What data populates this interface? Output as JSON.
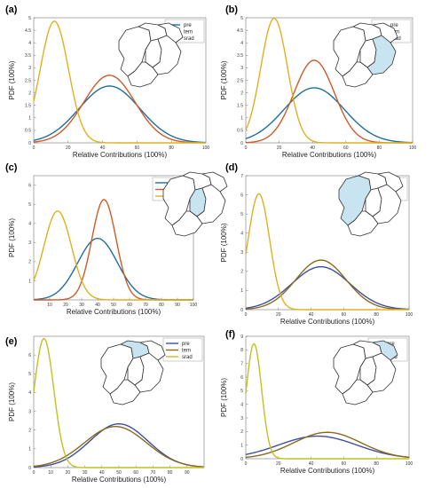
{
  "chart_data": [
    {
      "panel": "(a)",
      "type": "line",
      "xlabel": "Relative Contributions (100%)",
      "ylabel": "PDF (100%)",
      "xlim": [
        0,
        100
      ],
      "ylim": [
        0,
        5
      ],
      "xticks": [
        0,
        20,
        40,
        60,
        80,
        100
      ],
      "yticks": [
        0,
        0.5,
        1,
        1.5,
        2,
        2.5,
        3,
        3.5,
        4,
        4.5,
        5
      ],
      "ytick_labels": [
        "0",
        "0.5",
        "1",
        "1.5",
        "2",
        "2.5",
        "3",
        "3.5",
        "4",
        "4.5",
        "5"
      ],
      "legend_position": "top-right",
      "highlight": "none",
      "series": [
        {
          "name": "pre",
          "color": "#1f6e9c",
          "mean": 44,
          "sd": 17.6,
          "peak": 2.27
        },
        {
          "name": "tem",
          "color": "#d05a28",
          "mean": 44,
          "sd": 14.8,
          "peak": 2.7
        },
        {
          "name": "srad",
          "color": "#e0b020",
          "mean": 12,
          "sd": 8.2,
          "peak": 4.86
        }
      ]
    },
    {
      "panel": "(b)",
      "type": "line",
      "xlabel": "Relative Contributions (100%)",
      "ylabel": "PDF (100%)",
      "xlim": [
        0,
        100
      ],
      "ylim": [
        0,
        5
      ],
      "xticks": [
        0,
        20,
        40,
        60,
        80,
        100
      ],
      "yticks": [
        0,
        0.5,
        1,
        1.5,
        2,
        2.5,
        3,
        3.5,
        4,
        4.5,
        5
      ],
      "ytick_labels": [
        "0",
        "0.5",
        "1",
        "1.5",
        "2",
        "2.5",
        "3",
        "3.5",
        "4",
        "4.5",
        "5"
      ],
      "legend_position": "top-right",
      "highlight": "south-east",
      "series": [
        {
          "name": "pre",
          "color": "#1f6e9c",
          "mean": 41,
          "sd": 18.1,
          "peak": 2.2
        },
        {
          "name": "tem",
          "color": "#d05a28",
          "mean": 41,
          "sd": 12.1,
          "peak": 3.3
        },
        {
          "name": "srad",
          "color": "#e0b020",
          "mean": 17,
          "sd": 8.0,
          "peak": 4.98
        }
      ]
    },
    {
      "panel": "(c)",
      "type": "line",
      "xlabel": "Relative Contributions (100%)",
      "ylabel": "PDF (100%)",
      "xlim": [
        0,
        100
      ],
      "ylim": [
        0,
        6.5
      ],
      "xticks": [
        10,
        20,
        30,
        40,
        50,
        60,
        70,
        80,
        90,
        100
      ],
      "yticks": [
        0,
        1,
        2,
        3,
        4,
        5,
        6
      ],
      "ytick_labels": [
        "",
        "1",
        "2",
        "3",
        "4",
        "5",
        "6"
      ],
      "legend_position": "top-right",
      "highlight": "central",
      "series": [
        {
          "name": "pre",
          "color": "#1f6e9c",
          "mean": 40,
          "sd": 12.4,
          "peak": 3.22
        },
        {
          "name": "tem",
          "color": "#d05a28",
          "mean": 44,
          "sd": 7.6,
          "peak": 5.25
        },
        {
          "name": "srad",
          "color": "#e0b020",
          "mean": 15,
          "sd": 8.6,
          "peak": 4.65
        }
      ]
    },
    {
      "panel": "(d)",
      "type": "line",
      "xlabel": "Relative Contributions (100%)",
      "ylabel": "PDF (100%)",
      "xlim": [
        0,
        100
      ],
      "ylim": [
        0,
        7
      ],
      "xticks": [
        0,
        20,
        40,
        60,
        80,
        100
      ],
      "yticks": [
        0,
        1,
        2,
        3,
        4,
        5,
        6,
        7
      ],
      "ytick_labels": [
        "0",
        "1",
        "2",
        "3",
        "4",
        "5",
        "6",
        "7"
      ],
      "legend_position": "top-right",
      "highlight": "west",
      "series": [
        {
          "name": "pre",
          "color": "#3f4fa0",
          "mean": 46,
          "sd": 17.8,
          "peak": 2.24
        },
        {
          "name": "tem",
          "color": "#8a6a1e",
          "mean": 46,
          "sd": 15.4,
          "peak": 2.59
        },
        {
          "name": "srad",
          "color": "#e0b020",
          "mean": 8,
          "sd": 6.6,
          "peak": 6.05
        }
      ]
    },
    {
      "panel": "(e)",
      "type": "line",
      "xlabel": "Relative Contributions (100%)",
      "ylabel": "PDF (100%)",
      "xlim": [
        0,
        100
      ],
      "ylim": [
        0,
        7
      ],
      "xticks": [
        0,
        10,
        20,
        30,
        40,
        50,
        60,
        70,
        80,
        90
      ],
      "yticks": [
        0,
        1,
        2,
        3,
        4,
        5,
        6
      ],
      "ytick_labels": [
        "0",
        "1",
        "2",
        "3",
        "4",
        "5",
        "6"
      ],
      "legend_position": "top-right",
      "highlight": "north",
      "series": [
        {
          "name": "pre",
          "color": "#3f4fa0",
          "mean": 50,
          "sd": 17.1,
          "peak": 2.33
        },
        {
          "name": "tem",
          "color": "#8a6a1e",
          "mean": 48,
          "sd": 18.2,
          "peak": 2.19
        },
        {
          "name": "srad",
          "color": "#c4c020",
          "mean": 6,
          "sd": 5.8,
          "peak": 6.88
        }
      ]
    },
    {
      "panel": "(f)",
      "type": "line",
      "xlabel": "Relative Contributions (100%)",
      "ylabel": "PDF (100%)",
      "xlim": [
        0,
        100
      ],
      "ylim": [
        0,
        9
      ],
      "xticks": [
        0,
        20,
        40,
        60,
        80,
        100
      ],
      "yticks": [
        0,
        1,
        2,
        3,
        4,
        5,
        6,
        7,
        8,
        9
      ],
      "ytick_labels": [
        "0",
        "1",
        "2",
        "3",
        "4",
        "5",
        "6",
        "7",
        "8",
        "9"
      ],
      "legend_position": "top-right",
      "highlight": "north-east",
      "series": [
        {
          "name": "pre",
          "color": "#3f4fa0",
          "mean": 44,
          "sd": 24.0,
          "peak": 1.66
        },
        {
          "name": "tem",
          "color": "#8a6a1e",
          "mean": 50,
          "sd": 20.6,
          "peak": 1.94
        },
        {
          "name": "srad",
          "color": "#c4c020",
          "mean": 5,
          "sd": 4.7,
          "peak": 8.45
        }
      ]
    }
  ]
}
